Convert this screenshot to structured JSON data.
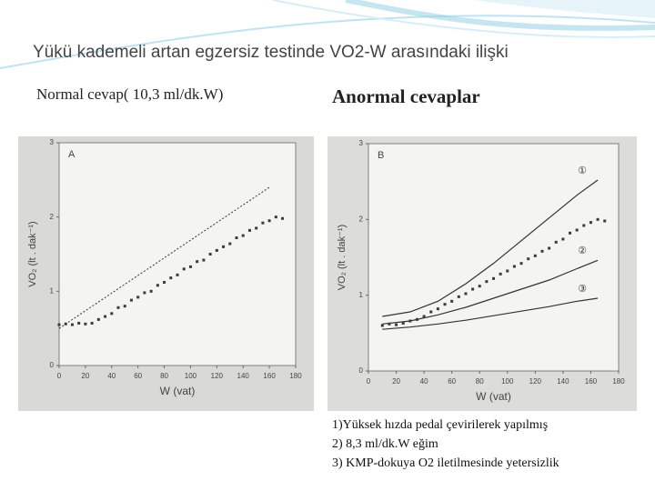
{
  "title": "Yükü kademeli artan egzersiz testinde VO2-W arasındaki ilişki",
  "left_caption": "Normal cevap( 10,3 ml/dk.W)",
  "right_caption": "Anormal cevaplar",
  "notes": [
    "1)Yüksek hızda pedal çevirilerek yapılmış",
    "2) 8,3 ml/dk.W eğim",
    "3) KMP-dokuya O2 iletilmesinde yetersizlik"
  ],
  "chart_data": [
    {
      "type": "scatter",
      "panel": "A",
      "x_label": "W (vat)",
      "y_label": "VO₂ (lt . dak⁻¹)",
      "xlim": [
        0,
        180
      ],
      "xticks": [
        0,
        20,
        40,
        60,
        80,
        100,
        120,
        140,
        160,
        180
      ],
      "ylim": [
        0,
        3
      ],
      "yticks": [
        0,
        1,
        2,
        3
      ],
      "color": "#3a3a3a",
      "x": [
        0,
        5,
        10,
        15,
        20,
        25,
        30,
        35,
        40,
        45,
        50,
        55,
        60,
        65,
        70,
        75,
        80,
        85,
        90,
        95,
        100,
        105,
        110,
        115,
        120,
        125,
        130,
        135,
        140,
        145,
        150,
        155,
        160,
        165,
        170
      ],
      "values": [
        0.55,
        0.56,
        0.55,
        0.57,
        0.56,
        0.57,
        0.62,
        0.66,
        0.7,
        0.78,
        0.8,
        0.88,
        0.92,
        0.98,
        1.0,
        1.08,
        1.12,
        1.18,
        1.22,
        1.3,
        1.33,
        1.4,
        1.42,
        1.5,
        1.55,
        1.6,
        1.64,
        1.72,
        1.75,
        1.82,
        1.85,
        1.92,
        1.95,
        2.0,
        1.98
      ],
      "lines": [
        {
          "x": [
            0,
            160
          ],
          "values": [
            0.5,
            2.4
          ],
          "dash": true
        }
      ]
    },
    {
      "type": "scatter",
      "panel": "B",
      "x_label": "W (vat)",
      "y_label": "VO₂ (lt . dak⁻¹)",
      "xlim": [
        0,
        180
      ],
      "xticks": [
        0,
        20,
        40,
        60,
        80,
        100,
        120,
        140,
        160,
        180
      ],
      "ylim": [
        0,
        3
      ],
      "yticks": [
        0,
        1,
        2,
        3
      ],
      "color": "#3a3a3a",
      "x": [
        10,
        15,
        20,
        25,
        30,
        35,
        40,
        45,
        50,
        55,
        60,
        65,
        70,
        75,
        80,
        85,
        90,
        95,
        100,
        105,
        110,
        115,
        120,
        125,
        130,
        135,
        140,
        145,
        150,
        155,
        160,
        165,
        170
      ],
      "values": [
        0.6,
        0.62,
        0.61,
        0.63,
        0.66,
        0.68,
        0.72,
        0.78,
        0.82,
        0.88,
        0.92,
        0.98,
        1.02,
        1.08,
        1.12,
        1.18,
        1.22,
        1.28,
        1.32,
        1.38,
        1.42,
        1.48,
        1.52,
        1.58,
        1.62,
        1.7,
        1.74,
        1.82,
        1.86,
        1.92,
        1.96,
        2.0,
        1.98
      ],
      "lines": [
        {
          "label": "①",
          "x": [
            10,
            30,
            50,
            70,
            90,
            110,
            130,
            150,
            165
          ],
          "values": [
            0.72,
            0.78,
            0.92,
            1.15,
            1.42,
            1.72,
            2.02,
            2.32,
            2.52
          ],
          "dash": false
        },
        {
          "label": "②",
          "x": [
            10,
            30,
            50,
            70,
            90,
            110,
            130,
            150,
            165
          ],
          "values": [
            0.62,
            0.66,
            0.74,
            0.84,
            0.96,
            1.08,
            1.2,
            1.35,
            1.46
          ],
          "dash": false
        },
        {
          "label": "③",
          "x": [
            10,
            30,
            50,
            70,
            90,
            110,
            130,
            150,
            165
          ],
          "values": [
            0.55,
            0.58,
            0.62,
            0.67,
            0.73,
            0.79,
            0.85,
            0.92,
            0.96
          ],
          "dash": false
        }
      ]
    }
  ]
}
